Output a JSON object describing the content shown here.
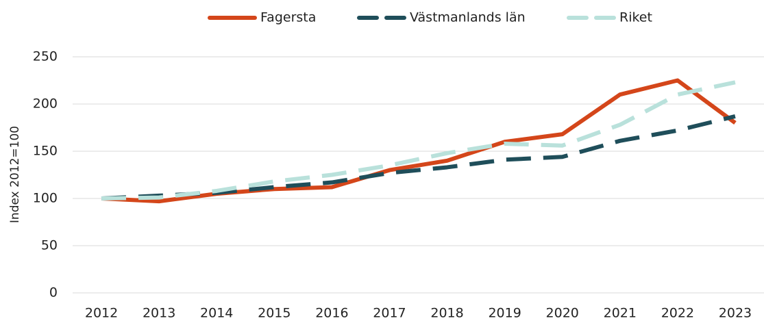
{
  "chart_data": {
    "type": "line",
    "y_label": "Index 2012=100",
    "categories": [
      "2012",
      "2013",
      "2014",
      "2015",
      "2016",
      "2017",
      "2018",
      "2019",
      "2020",
      "2021",
      "2022",
      "2023"
    ],
    "series": [
      {
        "name": "Fagersta",
        "color": "#d4461a",
        "dashed": false,
        "values": [
          100,
          97,
          105,
          110,
          112,
          130,
          140,
          160,
          168,
          210,
          225,
          180
        ]
      },
      {
        "name": "Västmanlands län",
        "color": "#1f4e5a",
        "dashed": true,
        "values": [
          100,
          103,
          106,
          112,
          117,
          127,
          133,
          141,
          144,
          161,
          172,
          187
        ]
      },
      {
        "name": "Riket",
        "color": "#b9e1db",
        "dashed": true,
        "values": [
          100,
          101,
          108,
          118,
          125,
          135,
          148,
          158,
          156,
          178,
          210,
          223
        ]
      }
    ],
    "ylim": [
      0,
      250
    ],
    "yticks": [
      0,
      50,
      100,
      150,
      200,
      250
    ],
    "grid": true,
    "legend": "top"
  }
}
